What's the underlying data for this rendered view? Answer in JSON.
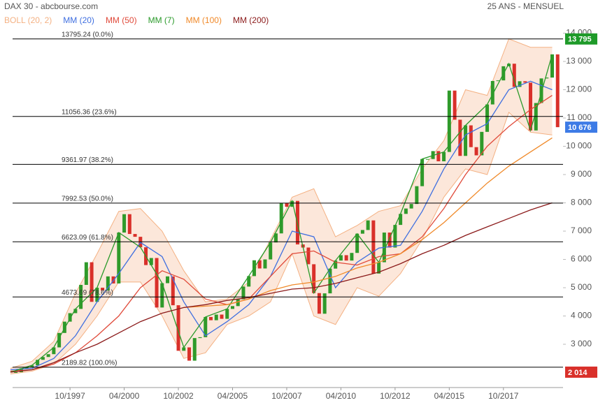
{
  "header": {
    "title": "DAX 30 - abcbourse.com",
    "period": "25 ANS - MENSUEL"
  },
  "chart_data": {
    "type": "candlestick",
    "xlim": [
      1995.1,
      2020.5
    ],
    "xticks": [
      {
        "value": 1997.75,
        "label": "10/1997"
      },
      {
        "value": 2000.25,
        "label": "04/2000"
      },
      {
        "value": 2002.75,
        "label": "10/2002"
      },
      {
        "value": 2005.25,
        "label": "04/2005"
      },
      {
        "value": 2007.75,
        "label": "10/2007"
      },
      {
        "value": 2010.25,
        "label": "04/2010"
      },
      {
        "value": 2012.75,
        "label": "10/2012"
      },
      {
        "value": 2015.25,
        "label": "04/2015"
      },
      {
        "value": 2017.75,
        "label": "10/2017"
      }
    ],
    "ylim": [
      1470,
      14185
    ],
    "yticks": [
      {
        "value": 3000,
        "label": "3 000"
      },
      {
        "value": 4000,
        "label": "4 000"
      },
      {
        "value": 5000,
        "label": "5 000"
      },
      {
        "value": 6000,
        "label": "6 000"
      },
      {
        "value": 7000,
        "label": "7 000"
      },
      {
        "value": 8000,
        "label": "8 000"
      },
      {
        "value": 9000,
        "label": "9 000"
      },
      {
        "value": 10000,
        "label": "10 000"
      },
      {
        "value": 11000,
        "label": "11 000"
      },
      {
        "value": 12000,
        "label": "12 000"
      },
      {
        "value": 13000,
        "label": "13 000"
      },
      {
        "value": 14000,
        "label": "14 000"
      }
    ],
    "up_color": "#2f9a2a",
    "down_color": "#d9302a",
    "x": [
      1995.25,
      1995.5,
      1995.75,
      1996,
      1996.25,
      1996.5,
      1996.75,
      1997,
      1997.25,
      1997.5,
      1997.75,
      1998,
      1998.25,
      1998.5,
      1998.75,
      1999,
      1999.25,
      1999.5,
      1999.75,
      2000,
      2000.25,
      2000.5,
      2000.75,
      2001,
      2001.25,
      2001.5,
      2001.75,
      2002,
      2002.25,
      2002.5,
      2002.75,
      2003,
      2003.25,
      2003.5,
      2003.75,
      2004,
      2004.25,
      2004.5,
      2004.75,
      2005,
      2005.25,
      2005.5,
      2005.75,
      2006,
      2006.25,
      2006.5,
      2006.75,
      2007,
      2007.25,
      2007.5,
      2007.75,
      2008,
      2008.25,
      2008.5,
      2008.75,
      2009,
      2009.25,
      2009.5,
      2009.75,
      2010,
      2010.25,
      2010.5,
      2010.75,
      2011,
      2011.25,
      2011.5,
      2011.75,
      2012,
      2012.25,
      2012.5,
      2012.75,
      2013,
      2013.25,
      2013.5,
      2013.75,
      2014,
      2014.25,
      2014.5,
      2014.75,
      2015,
      2015.25,
      2015.5,
      2015.75,
      2016,
      2016.25,
      2016.5,
      2016.75,
      2017,
      2017.25,
      2017.5,
      2017.75,
      2018,
      2018.25,
      2018.5,
      2018.75,
      2019,
      2019.25,
      2019.5,
      2019.75,
      2020,
      2020.25
    ],
    "open": [
      1990,
      2014,
      2150,
      2200,
      2254,
      2450,
      2550,
      2650,
      2890,
      3400,
      3800,
      4100,
      4250,
      5100,
      5900,
      4500,
      5000,
      4900,
      5400,
      5150,
      6950,
      7600,
      6900,
      6800,
      6430,
      5800,
      6050,
      4300,
      5160,
      5400,
      4380,
      2770,
      2890,
      2420,
      3220,
      3250,
      3965,
      3850,
      4050,
      3900,
      4250,
      4350,
      4590,
      5040,
      5410,
      5970,
      5680,
      6000,
      6600,
      6920,
      8000,
      7860,
      8070,
      6530,
      6420,
      5830,
      4810,
      4080,
      4800,
      5675,
      5960,
      6150,
      5960,
      6230,
      6910,
      7040,
      7380,
      5500,
      5900,
      6950,
      6420,
      7220,
      7610,
      7800,
      7960,
      8590,
      9550,
      9550,
      9830,
      9470,
      9800,
      11970,
      10940,
      9660,
      10740,
      9970,
      9680,
      10510,
      11480,
      12310,
      12330,
      12830,
      12920,
      12100,
      12300,
      12250,
      10560,
      11530,
      12400,
      12430,
      13250
    ],
    "close": [
      2014,
      2150,
      2200,
      2254,
      2450,
      2550,
      2650,
      2890,
      3400,
      3800,
      4100,
      4250,
      5100,
      5900,
      4500,
      5000,
      4900,
      5400,
      5150,
      6950,
      7600,
      6900,
      6800,
      6430,
      5800,
      6050,
      4300,
      5160,
      5400,
      4380,
      2770,
      2890,
      2420,
      3220,
      3250,
      3965,
      3850,
      4050,
      3900,
      4250,
      4350,
      4590,
      5040,
      5410,
      5970,
      5680,
      6000,
      6600,
      6920,
      8000,
      7860,
      8070,
      6530,
      6420,
      5830,
      4810,
      4080,
      4800,
      5675,
      5960,
      6150,
      5960,
      6230,
      6910,
      7040,
      7380,
      5500,
      5900,
      6950,
      6420,
      7220,
      7610,
      7800,
      7960,
      8590,
      9550,
      9550,
      9830,
      9470,
      9800,
      11970,
      10940,
      9660,
      10740,
      9970,
      9680,
      10510,
      11480,
      12310,
      12330,
      12830,
      12920,
      12100,
      12300,
      12250,
      10560,
      11530,
      12400,
      12430,
      13250,
      10676
    ],
    "bollinger": {
      "name": "BOLL (20, 2)",
      "color": "#f4b183",
      "x": [
        1995,
        1996,
        1997,
        1998,
        1999,
        2000,
        2001,
        2002,
        2003,
        2004,
        2005,
        2006,
        2007,
        2008,
        2009,
        2010,
        2011,
        2012,
        2013,
        2014,
        2015,
        2016,
        2017,
        2018,
        2019,
        2020
      ],
      "upper": [
        2150,
        2400,
        3100,
        4800,
        6200,
        7700,
        7800,
        7000,
        5600,
        4500,
        4600,
        5200,
        6700,
        8200,
        8500,
        6800,
        7200,
        7700,
        7900,
        9200,
        10200,
        12000,
        11800,
        13800,
        13500,
        13500
      ],
      "lower": [
        1950,
        2050,
        2300,
        3000,
        4000,
        5200,
        5200,
        4000,
        2500,
        2700,
        3700,
        4000,
        4500,
        6200,
        4000,
        3700,
        5000,
        4700,
        5500,
        6700,
        8200,
        9200,
        9000,
        11200,
        10500,
        10400
      ]
    },
    "series": [
      {
        "name": "MM (20)",
        "color": "#3f6fe0",
        "x": [
          1995,
          1996,
          1997,
          1998,
          1999,
          2000,
          2001,
          2002,
          2003,
          2004,
          2005,
          2006,
          2007,
          2008,
          2009,
          2010,
          2011,
          2012,
          2013,
          2014,
          2015,
          2016,
          2017,
          2018,
          2019,
          2020
        ],
        "values": [
          2100,
          2150,
          2500,
          3300,
          4500,
          5500,
          6600,
          6100,
          4500,
          3300,
          3800,
          4400,
          5400,
          7000,
          6800,
          5000,
          5900,
          6400,
          6500,
          7700,
          9200,
          10400,
          10800,
          12000,
          12300,
          12000
        ]
      },
      {
        "name": "MM (50)",
        "color": "#e04a3a",
        "x": [
          1995,
          1996,
          1997,
          1998,
          1999,
          2000,
          2001,
          2002,
          2003,
          2004,
          2005,
          2006,
          2007,
          2008,
          2009,
          2010,
          2011,
          2012,
          2013,
          2014,
          2015,
          2016,
          2017,
          2018,
          2019,
          2020
        ],
        "values": [
          2050,
          2100,
          2300,
          2700,
          3300,
          4000,
          5000,
          5600,
          5300,
          4600,
          4400,
          4600,
          5400,
          6200,
          6300,
          5900,
          5800,
          6100,
          6200,
          6800,
          7800,
          9000,
          10000,
          10700,
          11300,
          11800
        ]
      },
      {
        "name": "MM (7)",
        "color": "#2a9a2a",
        "x": [
          1995,
          1996,
          1997,
          1998,
          1999,
          2000,
          2001,
          2002,
          2003,
          2004,
          2005,
          2006,
          2007,
          2008,
          2009,
          2010,
          2011,
          2012,
          2013,
          2014,
          2015,
          2016,
          2017,
          2018,
          2019,
          2020
        ],
        "values": [
          2014,
          2260,
          2890,
          4250,
          5000,
          6950,
          6430,
          5160,
          2890,
          3965,
          4250,
          5410,
          6600,
          8070,
          4810,
          5960,
          6910,
          5900,
          7610,
          9550,
          9800,
          10740,
          11480,
          12920,
          10560,
          13250
        ]
      },
      {
        "name": "MM (100)",
        "color": "#f08a2a",
        "x": [
          1995,
          1996,
          1997,
          1998,
          1999,
          2000,
          2001,
          2002,
          2003,
          2004,
          2005,
          2006,
          2007,
          2008,
          2009,
          2010,
          2011,
          2012,
          2013,
          2014,
          2015,
          2016,
          2017,
          2018,
          2019,
          2020
        ],
        "values": [
          null,
          null,
          null,
          null,
          null,
          null,
          null,
          null,
          4300,
          4350,
          4400,
          4600,
          4900,
          5100,
          5200,
          5400,
          5700,
          5900,
          6200,
          6700,
          7300,
          8000,
          8700,
          9300,
          9800,
          10300
        ]
      },
      {
        "name": "MM (200)",
        "color": "#8b1a1a",
        "x": [
          1995,
          1996,
          1997,
          1998,
          1999,
          2000,
          2001,
          2002,
          2003,
          2004,
          2005,
          2006,
          2007,
          2008,
          2009,
          2010,
          2011,
          2012,
          2013,
          2014,
          2015,
          2016,
          2017,
          2018,
          2019,
          2020
        ],
        "values": [
          2014,
          2100,
          2350,
          2700,
          3000,
          3400,
          3800,
          4100,
          4300,
          4400,
          4550,
          4650,
          4800,
          4950,
          5000,
          5150,
          5350,
          5550,
          5850,
          6200,
          6500,
          6850,
          7150,
          7450,
          7750,
          8000
        ]
      }
    ],
    "fib_levels": [
      {
        "value": 13795.24,
        "label": "13795.24  (0.0%)"
      },
      {
        "value": 11056.36,
        "label": "11056.36  (23.6%)"
      },
      {
        "value": 9361.97,
        "label": "9361.97  (38.2%)"
      },
      {
        "value": 7992.53,
        "label": "7992.53  (50.0%)"
      },
      {
        "value": 6623.09,
        "label": "6623.09  (61.8%)"
      },
      {
        "value": 4673.69,
        "label": "4673.69  (78.6%)"
      },
      {
        "value": 2189.82,
        "label": "2189.82  (100.0%)"
      }
    ],
    "price_tags": [
      {
        "value": 13795,
        "label": "13 795",
        "color": "#1e9a29"
      },
      {
        "value": 10676,
        "label": "10 676",
        "color": "#3d7be6"
      },
      {
        "value": 2014,
        "label": "2 014",
        "color": "#d9302a"
      }
    ]
  }
}
